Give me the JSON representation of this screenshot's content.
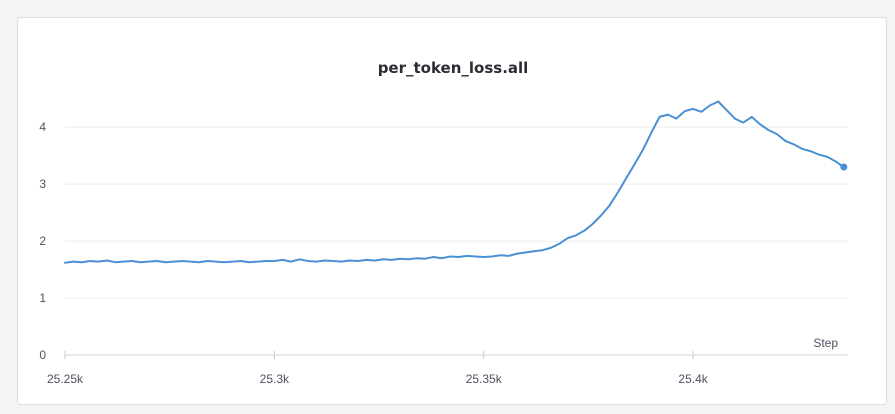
{
  "chart_data": {
    "type": "line",
    "title": "per_token_loss.all",
    "xlabel": "Step",
    "ylabel": "",
    "xlim": [
      25250,
      25437
    ],
    "ylim": [
      0,
      4.6
    ],
    "x_ticks": [
      25250,
      25300,
      25350,
      25400
    ],
    "x_tick_labels": [
      "25.25k",
      "25.3k",
      "25.35k",
      "25.4k"
    ],
    "y_ticks": [
      0,
      1,
      2,
      3,
      4
    ],
    "y_tick_labels": [
      "0",
      "1",
      "2",
      "3",
      "4"
    ],
    "grid": "horizontal",
    "legend": "none",
    "series": [
      {
        "color": "#4a90d4",
        "x": [
          25250,
          25252,
          25254,
          25256,
          25258,
          25260,
          25262,
          25264,
          25266,
          25268,
          25270,
          25272,
          25274,
          25276,
          25278,
          25280,
          25282,
          25284,
          25286,
          25288,
          25290,
          25292,
          25294,
          25296,
          25298,
          25300,
          25302,
          25304,
          25306,
          25308,
          25310,
          25312,
          25314,
          25316,
          25318,
          25320,
          25322,
          25324,
          25326,
          25328,
          25330,
          25332,
          25334,
          25336,
          25338,
          25340,
          25342,
          25344,
          25346,
          25348,
          25350,
          25352,
          25354,
          25356,
          25358,
          25360,
          25362,
          25364,
          25366,
          25368,
          25370,
          25372,
          25374,
          25376,
          25378,
          25380,
          25382,
          25384,
          25386,
          25388,
          25390,
          25392,
          25394,
          25396,
          25398,
          25400,
          25402,
          25404,
          25406,
          25408,
          25410,
          25412,
          25414,
          25416,
          25418,
          25420,
          25422,
          25424,
          25426,
          25428,
          25430,
          25432,
          25434,
          25436
        ],
        "y": [
          1.62,
          1.64,
          1.63,
          1.65,
          1.64,
          1.66,
          1.63,
          1.64,
          1.65,
          1.63,
          1.64,
          1.65,
          1.63,
          1.64,
          1.65,
          1.64,
          1.63,
          1.65,
          1.64,
          1.63,
          1.64,
          1.65,
          1.63,
          1.64,
          1.65,
          1.65,
          1.67,
          1.64,
          1.68,
          1.65,
          1.64,
          1.66,
          1.65,
          1.64,
          1.66,
          1.65,
          1.67,
          1.66,
          1.68,
          1.67,
          1.69,
          1.68,
          1.7,
          1.69,
          1.72,
          1.7,
          1.73,
          1.72,
          1.74,
          1.73,
          1.72,
          1.73,
          1.75,
          1.74,
          1.78,
          1.8,
          1.82,
          1.84,
          1.88,
          1.95,
          2.05,
          2.1,
          2.18,
          2.3,
          2.45,
          2.62,
          2.85,
          3.1,
          3.35,
          3.6,
          3.9,
          4.18,
          4.22,
          4.15,
          4.28,
          4.32,
          4.27,
          4.38,
          4.45,
          4.3,
          4.15,
          4.08,
          4.18,
          4.05,
          3.95,
          3.88,
          3.76,
          3.7,
          3.62,
          3.58,
          3.52,
          3.48,
          3.4,
          3.3
        ]
      }
    ]
  }
}
